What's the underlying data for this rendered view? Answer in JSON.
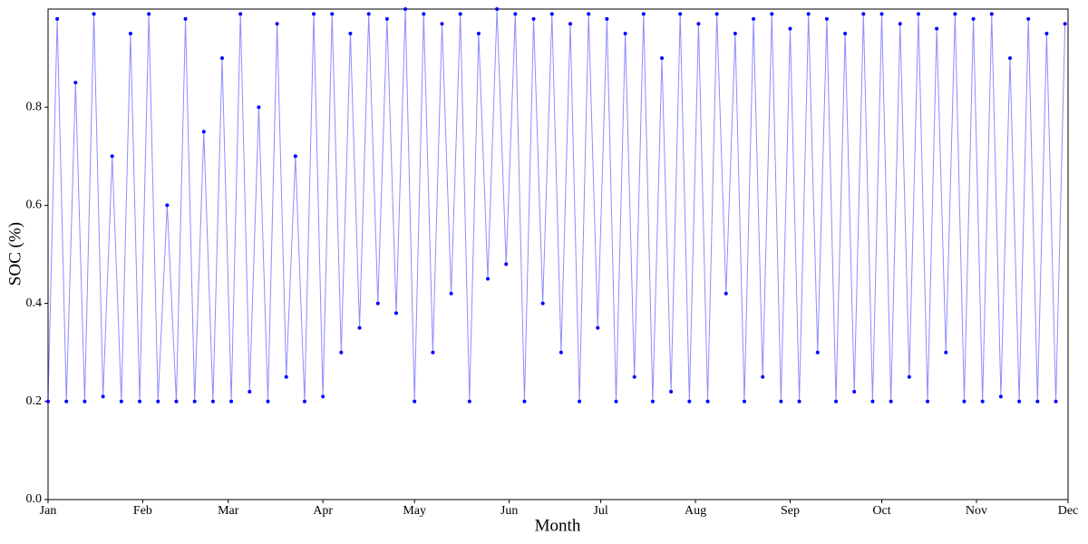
{
  "chart_data": {
    "type": "line",
    "xlabel": "Month",
    "ylabel": "SOC (%)",
    "color": "#0000ff",
    "xlim": [
      0,
      334
    ],
    "xticks": [
      {
        "value": 0,
        "label": "Jan"
      },
      {
        "value": 31,
        "label": "Feb"
      },
      {
        "value": 59,
        "label": "Mar"
      },
      {
        "value": 90,
        "label": "Apr"
      },
      {
        "value": 120,
        "label": "May"
      },
      {
        "value": 151,
        "label": "Jun"
      },
      {
        "value": 181,
        "label": "Jul"
      },
      {
        "value": 212,
        "label": "Aug"
      },
      {
        "value": 243,
        "label": "Sep"
      },
      {
        "value": 273,
        "label": "Oct"
      },
      {
        "value": 304,
        "label": "Nov"
      },
      {
        "value": 334,
        "label": "Dec"
      }
    ],
    "ylim": [
      0,
      1
    ],
    "yticks": [
      {
        "value": 0,
        "label": "0.0"
      },
      0.2,
      0.4,
      0.6,
      0.8
    ],
    "x": [
      0,
      3,
      6,
      9,
      12,
      15,
      18,
      21,
      24,
      27,
      30,
      33,
      36,
      39,
      42,
      45,
      48,
      51,
      54,
      57,
      60,
      63,
      66,
      69,
      72,
      75,
      78,
      81,
      84,
      87,
      90,
      93,
      96,
      99,
      102,
      105,
      108,
      111,
      114,
      117,
      120,
      123,
      126,
      129,
      132,
      135,
      138,
      141,
      144,
      147,
      150,
      153,
      156,
      159,
      162,
      165,
      168,
      171,
      174,
      177,
      180,
      183,
      186,
      189,
      192,
      195,
      198,
      201,
      204,
      207,
      210,
      213,
      216,
      219,
      222,
      225,
      228,
      231,
      234,
      237,
      240,
      243,
      246,
      249,
      252,
      255,
      258,
      261,
      264,
      267,
      270,
      273,
      276,
      279,
      282,
      285,
      288,
      291,
      294,
      297,
      300,
      303,
      306,
      309,
      312,
      315,
      318,
      321,
      324,
      327,
      330,
      333
    ],
    "series": [
      {
        "values": [
          0.2,
          0.98,
          0.2,
          0.85,
          0.2,
          0.99,
          0.21,
          0.7,
          0.2,
          0.95,
          0.2,
          0.99,
          0.2,
          0.6,
          0.2,
          0.98,
          0.2,
          0.75,
          0.2,
          0.9,
          0.2,
          0.99,
          0.22,
          0.8,
          0.2,
          0.97,
          0.25,
          0.7,
          0.2,
          0.99,
          0.21,
          0.99,
          0.3,
          0.95,
          0.35,
          0.99,
          0.4,
          0.98,
          0.38,
          1.0,
          0.2,
          0.99,
          0.3,
          0.97,
          0.42,
          0.99,
          0.2,
          0.95,
          0.45,
          1.0,
          0.48,
          0.99,
          0.2,
          0.98,
          0.4,
          0.99,
          0.3,
          0.97,
          0.2,
          0.99,
          0.35,
          0.98,
          0.2,
          0.95,
          0.25,
          0.99,
          0.2,
          0.9,
          0.22,
          0.99,
          0.2,
          0.97,
          0.2,
          0.99,
          0.42,
          0.95,
          0.2,
          0.98,
          0.25,
          0.99,
          0.2,
          0.96,
          0.2,
          0.99,
          0.3,
          0.98,
          0.2,
          0.95,
          0.22,
          0.99,
          0.2,
          0.99,
          0.2,
          0.97,
          0.25,
          0.99,
          0.2,
          0.96,
          0.3,
          0.99,
          0.2,
          0.98,
          0.2,
          0.99,
          0.21,
          0.9,
          0.2,
          0.98,
          0.2,
          0.95,
          0.2,
          0.97
        ]
      }
    ]
  }
}
